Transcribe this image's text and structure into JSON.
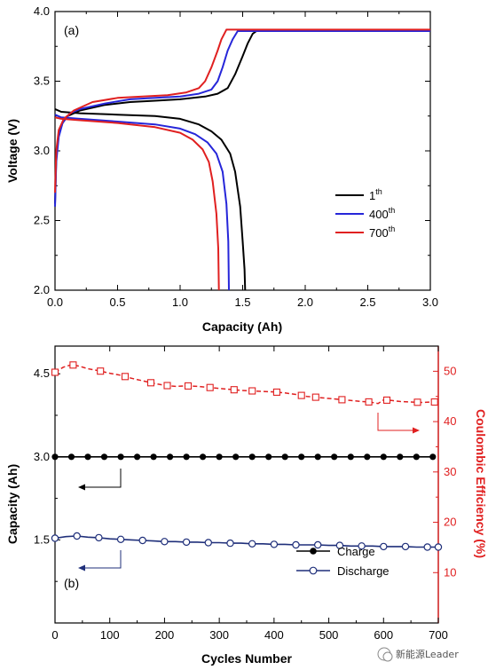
{
  "chart_data": [
    {
      "type": "line",
      "panel": "(a)",
      "xlabel": "Capacity (Ah)",
      "ylabel": "Voltage (V)",
      "xlim": [
        0,
        3.0
      ],
      "ylim": [
        2.0,
        4.0
      ],
      "xticks": [
        "0.0",
        "0.5",
        "1.0",
        "1.5",
        "2.0",
        "2.5",
        "3.0"
      ],
      "yticks": [
        "2.0",
        "2.5",
        "3.0",
        "3.5",
        "4.0"
      ],
      "legend_position": "right-middle",
      "series": [
        {
          "name_base": "1",
          "name_sup": "th",
          "color": "#000000",
          "charge": [
            [
              0,
              2.62
            ],
            [
              0.01,
              2.95
            ],
            [
              0.03,
              3.12
            ],
            [
              0.06,
              3.2
            ],
            [
              0.1,
              3.25
            ],
            [
              0.2,
              3.29
            ],
            [
              0.4,
              3.33
            ],
            [
              0.6,
              3.35
            ],
            [
              0.8,
              3.36
            ],
            [
              1.0,
              3.37
            ],
            [
              1.2,
              3.39
            ],
            [
              1.3,
              3.41
            ],
            [
              1.38,
              3.45
            ],
            [
              1.44,
              3.55
            ],
            [
              1.5,
              3.68
            ],
            [
              1.54,
              3.77
            ],
            [
              1.58,
              3.84
            ],
            [
              1.61,
              3.86
            ],
            [
              2.0,
              3.86
            ],
            [
              2.5,
              3.86
            ],
            [
              3.0,
              3.86
            ]
          ],
          "discharge": [
            [
              0,
              3.3
            ],
            [
              0.05,
              3.28
            ],
            [
              0.2,
              3.27
            ],
            [
              0.5,
              3.26
            ],
            [
              0.8,
              3.25
            ],
            [
              1.0,
              3.23
            ],
            [
              1.15,
              3.19
            ],
            [
              1.25,
              3.14
            ],
            [
              1.33,
              3.08
            ],
            [
              1.4,
              2.98
            ],
            [
              1.44,
              2.85
            ],
            [
              1.48,
              2.6
            ],
            [
              1.5,
              2.35
            ],
            [
              1.515,
              2.15
            ],
            [
              1.52,
              2.0
            ]
          ]
        },
        {
          "name_base": "400",
          "name_sup": "th",
          "color": "#2626d9",
          "charge": [
            [
              0,
              2.6
            ],
            [
              0.01,
              2.92
            ],
            [
              0.03,
              3.1
            ],
            [
              0.06,
              3.2
            ],
            [
              0.12,
              3.27
            ],
            [
              0.2,
              3.3
            ],
            [
              0.4,
              3.34
            ],
            [
              0.6,
              3.37
            ],
            [
              0.8,
              3.38
            ],
            [
              1.0,
              3.39
            ],
            [
              1.15,
              3.41
            ],
            [
              1.25,
              3.44
            ],
            [
              1.3,
              3.5
            ],
            [
              1.34,
              3.6
            ],
            [
              1.38,
              3.72
            ],
            [
              1.42,
              3.8
            ],
            [
              1.46,
              3.86
            ],
            [
              2.0,
              3.86
            ],
            [
              2.5,
              3.86
            ],
            [
              3.0,
              3.86
            ]
          ],
          "discharge": [
            [
              0,
              3.26
            ],
            [
              0.05,
              3.24
            ],
            [
              0.2,
              3.23
            ],
            [
              0.5,
              3.21
            ],
            [
              0.8,
              3.19
            ],
            [
              1.0,
              3.16
            ],
            [
              1.12,
              3.12
            ],
            [
              1.22,
              3.06
            ],
            [
              1.29,
              2.98
            ],
            [
              1.34,
              2.85
            ],
            [
              1.37,
              2.62
            ],
            [
              1.385,
              2.35
            ],
            [
              1.39,
              2.0
            ]
          ]
        },
        {
          "name_base": "700",
          "name_sup": "th",
          "color": "#e02020",
          "charge": [
            [
              0,
              2.7
            ],
            [
              0.01,
              3.0
            ],
            [
              0.03,
              3.15
            ],
            [
              0.07,
              3.23
            ],
            [
              0.15,
              3.29
            ],
            [
              0.3,
              3.35
            ],
            [
              0.5,
              3.38
            ],
            [
              0.7,
              3.39
            ],
            [
              0.9,
              3.4
            ],
            [
              1.05,
              3.42
            ],
            [
              1.15,
              3.45
            ],
            [
              1.2,
              3.5
            ],
            [
              1.25,
              3.6
            ],
            [
              1.3,
              3.72
            ],
            [
              1.33,
              3.8
            ],
            [
              1.37,
              3.87
            ],
            [
              2.0,
              3.87
            ],
            [
              2.5,
              3.87
            ],
            [
              3.0,
              3.87
            ]
          ],
          "discharge": [
            [
              0,
              3.24
            ],
            [
              0.05,
              3.23
            ],
            [
              0.2,
              3.22
            ],
            [
              0.5,
              3.2
            ],
            [
              0.8,
              3.17
            ],
            [
              1.0,
              3.13
            ],
            [
              1.1,
              3.08
            ],
            [
              1.18,
              3.01
            ],
            [
              1.23,
              2.92
            ],
            [
              1.26,
              2.78
            ],
            [
              1.29,
              2.55
            ],
            [
              1.305,
              2.3
            ],
            [
              1.31,
              2.0
            ]
          ]
        }
      ]
    },
    {
      "type": "scatter",
      "panel": "(b)",
      "xlabel": "Cycles Number",
      "ylabel": "Capacity (Ah)",
      "y2label": "Coulombic Efficiency (%)",
      "xlim": [
        0,
        700
      ],
      "ylim": [
        0,
        5.0
      ],
      "y2lim": [
        0,
        55
      ],
      "xticks": [
        "0",
        "100",
        "200",
        "300",
        "400",
        "500",
        "600",
        "700"
      ],
      "yticks": [
        "1.5",
        "3.0",
        "4.5"
      ],
      "y2ticks": [
        "10",
        "20",
        "30",
        "40",
        "50"
      ],
      "legend_position": "bottom-right",
      "series": [
        {
          "name": "Charge",
          "color": "#000000",
          "axis": "left",
          "marker": "filled-circle",
          "line": "solid",
          "x": [
            0,
            30,
            60,
            90,
            120,
            150,
            180,
            210,
            240,
            270,
            300,
            330,
            360,
            390,
            420,
            450,
            480,
            510,
            540,
            570,
            600,
            630,
            660,
            690
          ],
          "values": [
            3.0,
            3.0,
            3.0,
            3.0,
            3.0,
            3.0,
            3.0,
            3.0,
            3.0,
            3.0,
            3.0,
            3.0,
            3.0,
            3.0,
            3.0,
            3.0,
            3.0,
            3.0,
            3.0,
            3.0,
            3.0,
            3.0,
            3.0,
            3.0
          ]
        },
        {
          "name": "Discharge",
          "color": "#1f2f7a",
          "axis": "left",
          "marker": "open-circle",
          "line": "solid",
          "x": [
            0,
            20,
            40,
            60,
            80,
            100,
            120,
            140,
            160,
            180,
            200,
            220,
            240,
            260,
            280,
            300,
            320,
            340,
            360,
            380,
            400,
            420,
            440,
            460,
            480,
            500,
            520,
            540,
            560,
            580,
            600,
            620,
            640,
            660,
            680,
            700
          ],
          "values": [
            1.53,
            1.56,
            1.57,
            1.55,
            1.54,
            1.52,
            1.51,
            1.5,
            1.49,
            1.48,
            1.47,
            1.47,
            1.46,
            1.46,
            1.45,
            1.45,
            1.44,
            1.44,
            1.43,
            1.43,
            1.42,
            1.42,
            1.41,
            1.41,
            1.41,
            1.4,
            1.4,
            1.39,
            1.39,
            1.39,
            1.38,
            1.38,
            1.38,
            1.37,
            1.37,
            1.37
          ]
        },
        {
          "name": "",
          "color": "#e02020",
          "axis": "right",
          "marker": "open-square",
          "line": "dashed",
          "x": [
            0,
            15,
            30,
            45,
            60,
            80,
            100,
            120,
            140,
            160,
            180,
            200,
            220,
            240,
            260,
            280,
            300,
            320,
            340,
            360,
            380,
            400,
            420,
            440,
            460,
            480,
            500,
            520,
            540,
            560,
            575,
            590,
            600,
            615,
            630,
            650,
            670,
            690
          ],
          "values": [
            49.8,
            50.8,
            51.3,
            51.0,
            50.5,
            50.1,
            49.6,
            49.2,
            48.6,
            48.1,
            47.6,
            47.2,
            47.0,
            47.1,
            47.0,
            46.8,
            46.6,
            46.4,
            46.2,
            46.1,
            46.0,
            45.9,
            45.7,
            45.4,
            45.0,
            44.8,
            44.6,
            44.4,
            44.2,
            44.0,
            43.9,
            43.6,
            44.3,
            44.2,
            44.0,
            43.9,
            43.8,
            43.9
          ],
          "marker_x": [
            0,
            33,
            83,
            128,
            175,
            205,
            243,
            283,
            327,
            360,
            405,
            450,
            476,
            524,
            573,
            606,
            662,
            693
          ]
        }
      ]
    }
  ],
  "watermark": "新能源Leader"
}
